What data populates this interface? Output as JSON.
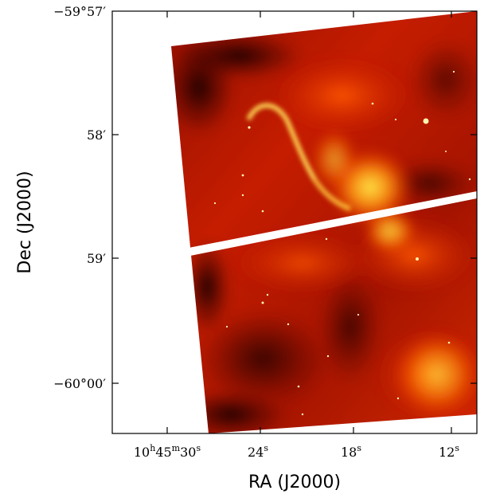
{
  "figure": {
    "type": "astronomical-image",
    "colormap": "gist_heat",
    "colors": {
      "background": "#ffffff",
      "frame": "#000000",
      "dark": "#1a0000",
      "mid": "#c81e00",
      "bright": "#ff6a00",
      "hot": "#ffe84a"
    },
    "x_axis": {
      "label": "RA (J2000)",
      "ticks": [
        {
          "main": "10",
          "sup1": "h",
          "mid": "45",
          "sup2": "m",
          "tail": "30",
          "sup3": "s"
        },
        {
          "main": "24",
          "sup1": "s"
        },
        {
          "main": "18",
          "sup1": "s"
        },
        {
          "main": "12",
          "sup1": "s"
        }
      ]
    },
    "y_axis": {
      "label": "Dec (J2000)",
      "ticks": [
        {
          "text": "−59°57′"
        },
        {
          "text": "58′"
        },
        {
          "text": "59′"
        },
        {
          "text": "−60°00′"
        }
      ]
    }
  }
}
